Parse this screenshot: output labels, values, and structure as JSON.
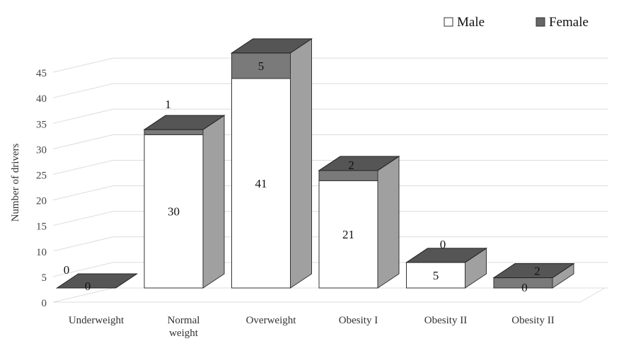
{
  "chart_data": {
    "type": "bar",
    "stacked": true,
    "style": "3d",
    "categories": [
      "Underweight",
      "Normal weight",
      "Overweight",
      "Obesity I",
      "Obesity II",
      "Obesity II"
    ],
    "series": [
      {
        "name": "Male",
        "values": [
          0,
          30,
          41,
          21,
          5,
          0
        ],
        "color": "#ffffff"
      },
      {
        "name": "Female",
        "values": [
          0,
          1,
          5,
          2,
          0,
          2
        ],
        "color": "#7a7a7a"
      }
    ],
    "ylabel": "Number of drivers",
    "xlabel": "",
    "ylim": [
      0,
      45
    ],
    "yticks": [
      "0",
      "5",
      "10",
      "15",
      "20",
      "25",
      "30",
      "35",
      "40",
      "45"
    ],
    "grid": true,
    "legend": "top-right"
  }
}
